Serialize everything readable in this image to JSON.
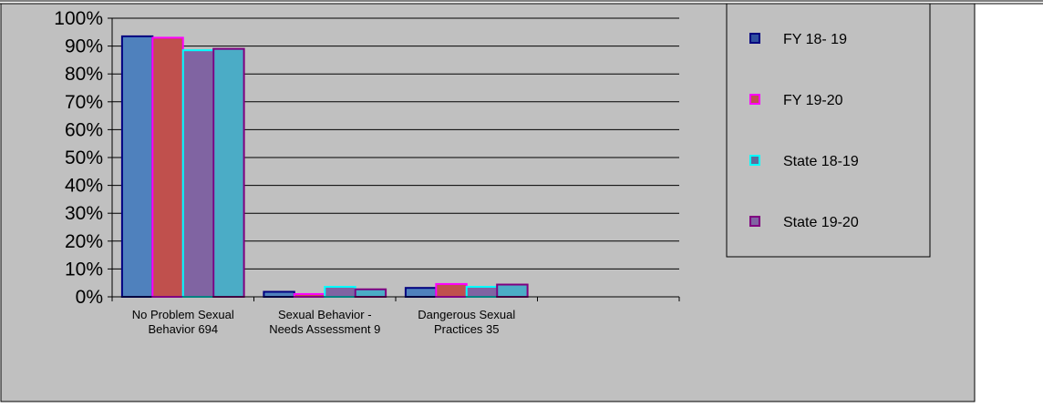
{
  "chart_data": {
    "type": "bar",
    "title": "",
    "xlabel": "",
    "ylabel": "",
    "ylim": [
      0,
      100
    ],
    "yticks": [
      "0%",
      "10%",
      "20%",
      "30%",
      "40%",
      "50%",
      "60%",
      "70%",
      "80%",
      "90%",
      "100%"
    ],
    "grid": true,
    "legend_position": "right",
    "categories": [
      [
        "No Problem Sexual",
        "Behavior 694"
      ],
      [
        "Sexual Behavior -",
        "Needs Assessment 9"
      ],
      [
        "Dangerous Sexual",
        "Practices  35"
      ]
    ],
    "series": [
      {
        "name": "FY 18- 19",
        "values": [
          93.5,
          1.8,
          3.2
        ],
        "fill": "#4F81BD",
        "border": "#000080",
        "swatch_fill": "#2F4F9F",
        "swatch_border": "#000080"
      },
      {
        "name": "FY 19-20",
        "values": [
          93.0,
          1.0,
          4.6
        ],
        "fill": "#C0504D",
        "border": "#FF00FF",
        "swatch_fill": "#C0504D",
        "swatch_border": "#FF00FF"
      },
      {
        "name": "State 18-19",
        "values": [
          88.5,
          3.6,
          3.6
        ],
        "fill": "#8064A2",
        "border": "#00FFFF",
        "swatch_fill": "#5E6C9C",
        "swatch_border": "#00FFFF"
      },
      {
        "name": "State 19-20",
        "values": [
          89.0,
          2.7,
          4.4
        ],
        "fill": "#4BACC6",
        "border": "#800080",
        "swatch_fill": "#8064A2",
        "swatch_border": "#800080"
      }
    ]
  },
  "colors": {
    "background": "#C0C0C0",
    "frame": "#000000",
    "gridline": "#000000"
  }
}
